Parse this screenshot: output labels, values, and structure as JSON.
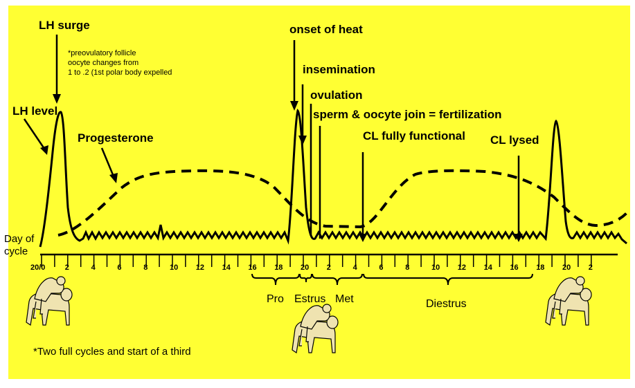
{
  "colors": {
    "background": "#ffff33",
    "ink": "#000000",
    "cow": "#e8d9a8"
  },
  "labels": {
    "lh_surge": "LH surge",
    "lh_level": "LH level",
    "progesterone": "Progesterone",
    "onset_of_heat": "onset of heat",
    "insemination": "insemination",
    "ovulation": "ovulation",
    "fertilization": "sperm & oocyte join = fertilization",
    "cl_functional": "CL fully functional",
    "cl_lysed": "CL lysed",
    "note_lines": [
      "*preovulatory follicle",
      "oocyte changes from",
      "1 to .2 (1st polar body expelled"
    ],
    "day_of_cycle": [
      "Day of",
      "cycle"
    ],
    "footnote": "*Two full cycles and start of a third"
  },
  "axis_ticks": [
    "20/0",
    "2",
    "4",
    "6",
    "8",
    "10",
    "12",
    "14",
    "16",
    "18",
    "20",
    "2",
    "4",
    "6",
    "8",
    "10",
    "12",
    "14",
    "16",
    "18",
    "20",
    "2"
  ],
  "phases": [
    "Pro",
    "Estrus",
    "Met",
    "Diestrus"
  ],
  "icons": {
    "cow": "mounting-cows-icon"
  }
}
